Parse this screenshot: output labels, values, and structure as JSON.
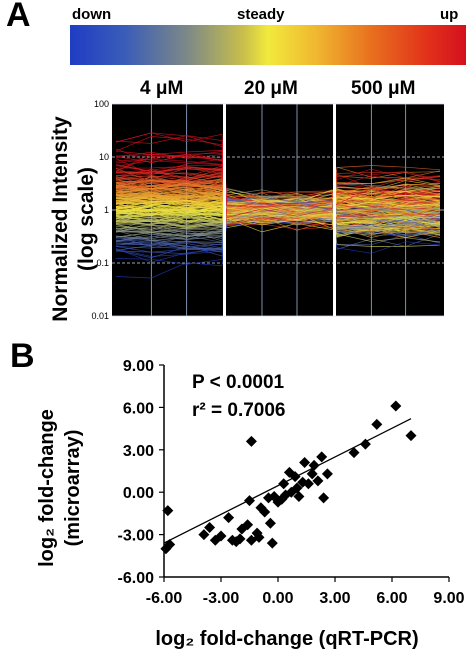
{
  "panels": {
    "a": {
      "letter": "A",
      "gradient_labels": {
        "left": "down",
        "middle": "steady",
        "right": "up"
      },
      "concentrations": [
        "4 μM",
        "20 μM",
        "500 μM"
      ],
      "ylabel_line1": "Normalized Intensity",
      "ylabel_line2": "(log scale)",
      "ytick_labels": [
        "100",
        "10",
        "1",
        "0.1",
        "0.01"
      ]
    },
    "b": {
      "letter": "B",
      "ylabel_line1": "log₂ fold-change",
      "ylabel_line2": "(microarray)",
      "xlabel": "log₂ fold-change (qRT-PCR)",
      "annotation_p": "P < 0.0001",
      "annotation_r2": "r² = 0.7006"
    }
  },
  "chart_data": [
    {
      "type": "line",
      "title": "",
      "ylabel": "Normalized Intensity (log scale)",
      "yscale": "log",
      "ylim": [
        0.01,
        100
      ],
      "groups": [
        "4 μM",
        "20 μM",
        "500 μM"
      ],
      "points_per_group": 4,
      "color_scale": {
        "low": "down",
        "mid": "steady",
        "high": "up",
        "colors": [
          "#1f3cc4",
          "#f2ea3c",
          "#d4101e"
        ]
      },
      "background": "#000000",
      "grid": true,
      "note": "many gene expression profiles, individual values not legible"
    },
    {
      "type": "scatter",
      "title": "",
      "xlabel": "log2 fold-change (qRT-PCR)",
      "ylabel": "log2 fold-change (microarray)",
      "xlim": [
        -6,
        9
      ],
      "ylim": [
        -6,
        9
      ],
      "xticks": [
        "-6.00",
        "-3.00",
        "0.00",
        "3.00",
        "6.00",
        "9.00"
      ],
      "yticks": [
        "-6.00",
        "-3.00",
        "0.00",
        "3.00",
        "6.00",
        "9.00"
      ],
      "grid": false,
      "marker": "diamond",
      "points": [
        [
          -5.8,
          -1.3
        ],
        [
          -5.9,
          -4.0
        ],
        [
          -5.7,
          -3.7
        ],
        [
          -3.9,
          -3.0
        ],
        [
          -3.6,
          -2.5
        ],
        [
          -3.3,
          -3.4
        ],
        [
          -3.0,
          -3.1
        ],
        [
          -2.6,
          -1.8
        ],
        [
          -2.4,
          -3.4
        ],
        [
          -2.2,
          -3.5
        ],
        [
          -2.0,
          -3.3
        ],
        [
          -1.9,
          -2.6
        ],
        [
          -1.6,
          -2.3
        ],
        [
          -1.5,
          -0.6
        ],
        [
          -1.4,
          -3.4
        ],
        [
          -1.4,
          3.6
        ],
        [
          -1.1,
          -2.9
        ],
        [
          -1.0,
          -3.2
        ],
        [
          -0.9,
          -1.1
        ],
        [
          -0.7,
          -1.4
        ],
        [
          -0.5,
          -0.4
        ],
        [
          -0.4,
          -2.2
        ],
        [
          -0.3,
          -3.6
        ],
        [
          -0.2,
          -0.3
        ],
        [
          0.0,
          -0.7
        ],
        [
          0.2,
          -0.5
        ],
        [
          0.3,
          0.6
        ],
        [
          0.4,
          -0.2
        ],
        [
          0.6,
          1.4
        ],
        [
          0.7,
          0.0
        ],
        [
          0.9,
          1.1
        ],
        [
          1.0,
          0.3
        ],
        [
          1.1,
          -0.3
        ],
        [
          1.3,
          0.7
        ],
        [
          1.4,
          2.1
        ],
        [
          1.6,
          0.6
        ],
        [
          1.8,
          1.3
        ],
        [
          1.9,
          1.9
        ],
        [
          2.1,
          0.8
        ],
        [
          2.3,
          2.5
        ],
        [
          2.4,
          -0.4
        ],
        [
          2.6,
          1.3
        ],
        [
          4.0,
          2.8
        ],
        [
          4.6,
          3.4
        ],
        [
          5.2,
          4.8
        ],
        [
          6.2,
          6.1
        ],
        [
          7.0,
          4.0
        ]
      ],
      "trendline": {
        "x": [
          -6,
          7
        ],
        "y": [
          -3.6,
          5.2
        ]
      },
      "annotations": [
        "P < 0.0001",
        "r² = 0.7006"
      ]
    }
  ]
}
